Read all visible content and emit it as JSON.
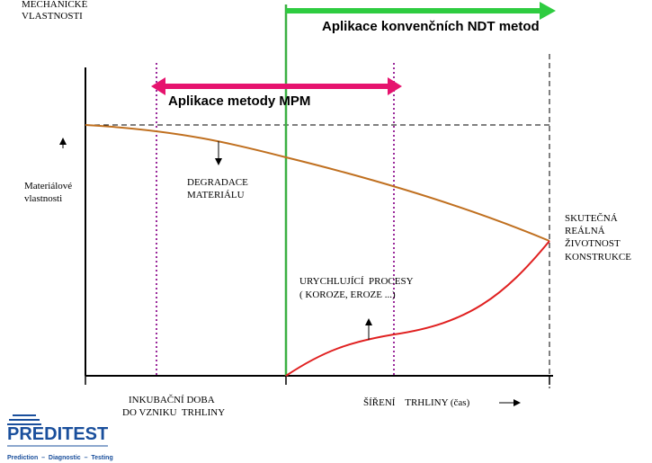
{
  "axis_label": [
    "MECHANICKÉ",
    "VLASTNOSTI"
  ],
  "ndt_label": "Aplikace konvenčních NDT metod",
  "mpm_label": "Aplikace metody MPM",
  "property_label": [
    "Materiálové",
    "vlastnosti"
  ],
  "degradation_label": [
    "DEGRADACE",
    "MATERIÁLU"
  ],
  "lifetime_label": [
    "SKUTEČNÁ",
    "REÁLNÁ",
    "ŽIVOTNOST",
    "KONSTRUKCE"
  ],
  "processes_label": [
    "URYCHLUJÍCÍ  PROCESY",
    "( KOROZE, EROZE ...)"
  ],
  "incubation_label": [
    "INKUBAČNÍ DOBA",
    "DO VZNIKU  TRHLINY"
  ],
  "crack_label": "ŠÍŘENÍ    TRHLINY (čas)",
  "logo": {
    "name": "PREDITEST",
    "tagline": "Prediction  –  Diagnostic  –  Testing"
  }
}
